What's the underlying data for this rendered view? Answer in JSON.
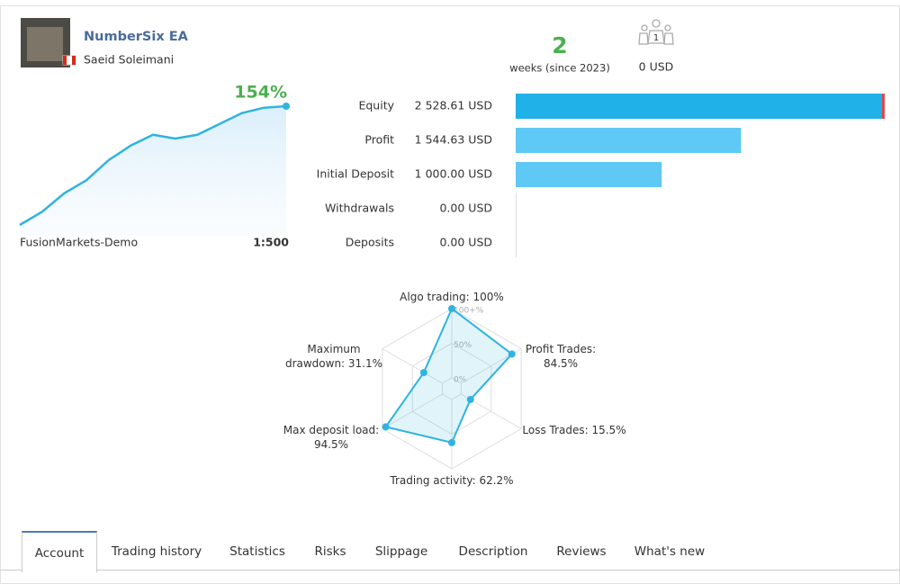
{
  "header": {
    "title": "NumberSix EA",
    "author": "Saeid Soleimani",
    "weeks": 2,
    "weeks_label": "weeks (since 2023)",
    "subscribers": 1,
    "subscribers_funds": "0 USD"
  },
  "account": {
    "broker": "FusionMarkets-Demo",
    "leverage": "1:500"
  },
  "chart_data": [
    {
      "type": "line",
      "annotation": "154%",
      "values": [
        0,
        17,
        41,
        58,
        84,
        103,
        117,
        112,
        117,
        131,
        145,
        152,
        154
      ],
      "color": "#2fb3e0"
    },
    {
      "type": "hbar",
      "categories": [
        "Equity",
        "Profit",
        "Initial Deposit",
        "Withdrawals",
        "Deposits"
      ],
      "values": [
        2528.61,
        1544.63,
        1000,
        0,
        0
      ],
      "value_labels": [
        "2 528.61 USD",
        "1 544.63 USD",
        "1 000.00 USD",
        "0.00 USD",
        "0.00 USD"
      ],
      "colors": [
        "#1fb1e8",
        "#5fc9f5",
        "#5fc9f5",
        "#5fc9f5",
        "#5fc9f5"
      ]
    },
    {
      "type": "radar",
      "categories": [
        "Algo trading: 100%",
        "Profit Trades: 84.5%",
        "Loss Trades: 15.5%",
        "Trading activity: 62.2%",
        "Max deposit load: 94.5%",
        "Maximum drawdown: 31.1%"
      ],
      "values": [
        100,
        84.5,
        15.5,
        62.2,
        94.5,
        31.1
      ],
      "rlim": [
        0,
        100
      ],
      "rticks": [
        {
          "value": 0,
          "label": "0%"
        },
        {
          "value": 50,
          "label": "50%"
        },
        {
          "value": 100,
          "label": "100+%"
        }
      ],
      "color": "#2fb3e0"
    }
  ],
  "tabs": [
    "Account",
    "Trading history",
    "Statistics",
    "Risks",
    "Slippage",
    "Description",
    "Reviews",
    "What's new"
  ],
  "active_tab": 0
}
